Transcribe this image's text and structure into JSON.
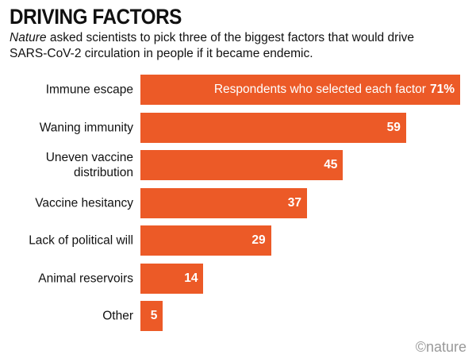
{
  "chart_data": {
    "type": "bar",
    "orientation": "horizontal",
    "title": "DRIVING FACTORS",
    "subtitle_italic": "Nature",
    "subtitle": "asked scientists to pick three of the biggest factors that would drive SARS-CoV-2 circulation in people if it became endemic.",
    "annotation": "Respondents who selected each factor",
    "categories": [
      "Immune escape",
      "Waning immunity",
      "Uneven vaccine distribution",
      "Vaccine hesitancy",
      "Lack of political will",
      "Animal reservoirs",
      "Other"
    ],
    "values": [
      71,
      59,
      45,
      37,
      29,
      14,
      5
    ],
    "value_labels": [
      "71%",
      "59",
      "45",
      "37",
      "29",
      "14",
      "5"
    ],
    "color": "#ec5a27",
    "xlim": [
      0,
      71
    ],
    "source": "©nature"
  }
}
